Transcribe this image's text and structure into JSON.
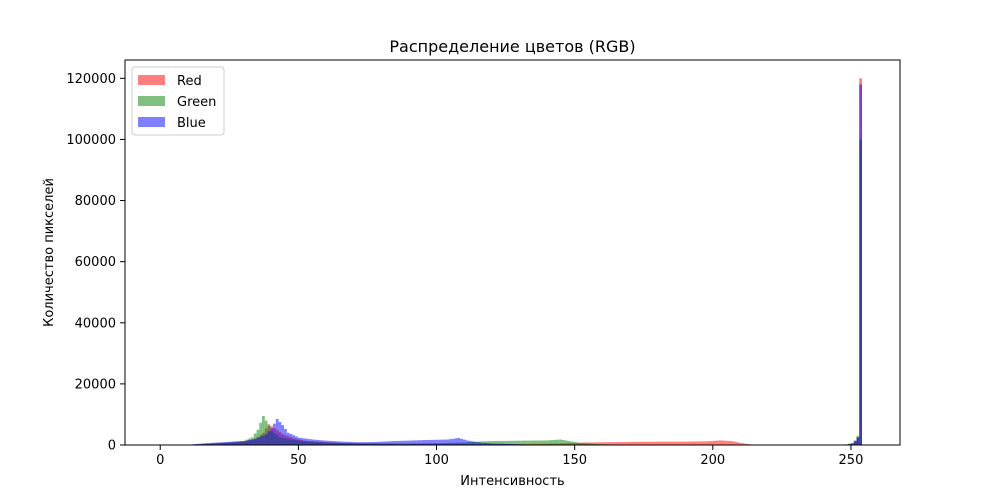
{
  "chart_data": {
    "type": "histogram",
    "title": "Распределение цветов (RGB)",
    "xlabel": "Интенсивность",
    "ylabel": "Количество пикселей",
    "xlim": [
      -12.75,
      267.75
    ],
    "ylim": [
      0,
      126000
    ],
    "xticks": [
      0,
      50,
      100,
      150,
      200,
      250
    ],
    "yticks": [
      0,
      20000,
      40000,
      60000,
      80000,
      100000,
      120000
    ],
    "grid": false,
    "legend_position": "top-left",
    "bins": 256,
    "series": [
      {
        "name": "Red",
        "color": "#ff0000",
        "opacity": 0.5,
        "anchors": [
          [
            0,
            0
          ],
          [
            9,
            0
          ],
          [
            12,
            200
          ],
          [
            18,
            400
          ],
          [
            24,
            700
          ],
          [
            30,
            1000
          ],
          [
            34,
            2000
          ],
          [
            37,
            4000
          ],
          [
            39,
            6800
          ],
          [
            41,
            5500
          ],
          [
            44,
            3500
          ],
          [
            48,
            2200
          ],
          [
            52,
            1400
          ],
          [
            58,
            1000
          ],
          [
            64,
            700
          ],
          [
            70,
            500
          ],
          [
            80,
            400
          ],
          [
            90,
            300
          ],
          [
            100,
            300
          ],
          [
            110,
            300
          ],
          [
            120,
            300
          ],
          [
            130,
            300
          ],
          [
            140,
            400
          ],
          [
            148,
            600
          ],
          [
            153,
            800
          ],
          [
            160,
            900
          ],
          [
            170,
            1000
          ],
          [
            180,
            1100
          ],
          [
            190,
            1100
          ],
          [
            198,
            1200
          ],
          [
            203,
            1500
          ],
          [
            207,
            1300
          ],
          [
            211,
            600
          ],
          [
            214,
            200
          ],
          [
            217,
            0
          ],
          [
            245,
            0
          ],
          [
            249,
            200
          ],
          [
            251,
            500
          ],
          [
            252,
            1200
          ],
          [
            253,
            2500
          ],
          [
            254,
            120000
          ],
          [
            255,
            0
          ]
        ]
      },
      {
        "name": "Green",
        "color": "#008000",
        "opacity": 0.5,
        "anchors": [
          [
            0,
            0
          ],
          [
            9,
            0
          ],
          [
            12,
            200
          ],
          [
            18,
            500
          ],
          [
            24,
            800
          ],
          [
            30,
            1400
          ],
          [
            33,
            2500
          ],
          [
            35,
            5000
          ],
          [
            37,
            9500
          ],
          [
            38,
            8000
          ],
          [
            40,
            4500
          ],
          [
            43,
            2500
          ],
          [
            47,
            1800
          ],
          [
            52,
            1200
          ],
          [
            58,
            900
          ],
          [
            64,
            700
          ],
          [
            70,
            600
          ],
          [
            80,
            500
          ],
          [
            90,
            500
          ],
          [
            100,
            600
          ],
          [
            110,
            800
          ],
          [
            115,
            1100
          ],
          [
            120,
            1300
          ],
          [
            130,
            1400
          ],
          [
            140,
            1500
          ],
          [
            145,
            1800
          ],
          [
            148,
            1300
          ],
          [
            152,
            700
          ],
          [
            158,
            300
          ],
          [
            165,
            100
          ],
          [
            170,
            0
          ],
          [
            245,
            0
          ],
          [
            249,
            200
          ],
          [
            251,
            600
          ],
          [
            252,
            1500
          ],
          [
            253,
            3000
          ],
          [
            254,
            100000
          ],
          [
            255,
            0
          ]
        ]
      },
      {
        "name": "Blue",
        "color": "#0000ff",
        "opacity": 0.5,
        "anchors": [
          [
            0,
            0
          ],
          [
            9,
            0
          ],
          [
            12,
            300
          ],
          [
            18,
            700
          ],
          [
            24,
            1000
          ],
          [
            30,
            1300
          ],
          [
            34,
            2000
          ],
          [
            38,
            3500
          ],
          [
            40,
            5500
          ],
          [
            42,
            8500
          ],
          [
            44,
            6500
          ],
          [
            46,
            4000
          ],
          [
            50,
            2400
          ],
          [
            55,
            1800
          ],
          [
            60,
            1400
          ],
          [
            66,
            1100
          ],
          [
            72,
            900
          ],
          [
            78,
            1000
          ],
          [
            85,
            1300
          ],
          [
            95,
            1600
          ],
          [
            104,
            1800
          ],
          [
            108,
            2300
          ],
          [
            111,
            1500
          ],
          [
            115,
            900
          ],
          [
            120,
            500
          ],
          [
            128,
            300
          ],
          [
            135,
            100
          ],
          [
            140,
            0
          ],
          [
            245,
            0
          ],
          [
            249,
            200
          ],
          [
            251,
            500
          ],
          [
            252,
            1200
          ],
          [
            253,
            2500
          ],
          [
            254,
            118000
          ],
          [
            255,
            0
          ]
        ]
      }
    ]
  }
}
